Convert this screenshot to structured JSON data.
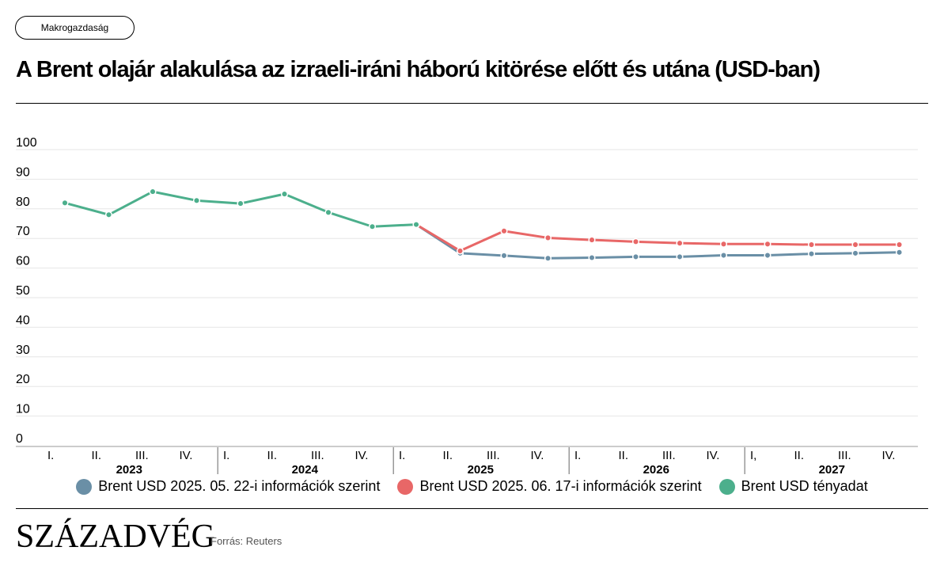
{
  "tag_label": "Makrogazdaság",
  "title": "A Brent olajár alakulása az izraeli-iráni háború kitörése előtt és utána (USD-ban)",
  "logo": "SZÁZADVÉG",
  "source": "Forrás: Reuters",
  "colors": {
    "forecast_may": "#6a8fa6",
    "forecast_june": "#e86767",
    "actual": "#4caf8c",
    "grid": "#e6e6e6"
  },
  "chart_data": {
    "type": "line",
    "y_ticks": [
      "0",
      "10",
      "20",
      "30",
      "40",
      "50",
      "60",
      "70",
      "80",
      "90",
      "100"
    ],
    "ylim": [
      0,
      102
    ],
    "grid": true,
    "legend_position": "bottom",
    "categories": [
      "I.",
      "II.",
      "III.",
      "IV.",
      "I.",
      "II.",
      "III.",
      "IV.",
      "I.",
      "II.",
      "III.",
      "IV.",
      "I.",
      "II.",
      "III.",
      "IV.",
      "I,",
      "II.",
      "III.",
      "IV."
    ],
    "years": [
      "2023",
      "2024",
      "2025",
      "2026",
      "2027"
    ],
    "series": [
      {
        "name": "Brent USD 2025. 05. 22-i információk szerint",
        "color_key": "forecast_may",
        "values": [
          null,
          null,
          null,
          null,
          null,
          null,
          null,
          null,
          74.7,
          65.0,
          64.2,
          63.3,
          63.5,
          63.8,
          63.8,
          64.3,
          64.3,
          64.8,
          65.0,
          65.3
        ]
      },
      {
        "name": "Brent USD 2025. 06. 17-i információk szerint",
        "color_key": "forecast_june",
        "values": [
          null,
          null,
          null,
          null,
          null,
          null,
          null,
          null,
          74.7,
          65.8,
          72.5,
          70.2,
          69.5,
          68.9,
          68.4,
          68.1,
          68.1,
          67.9,
          67.9,
          67.9
        ]
      },
      {
        "name": "Brent USD tényadat",
        "color_key": "actual",
        "values": [
          82.0,
          78.0,
          85.8,
          82.8,
          81.8,
          85.0,
          78.8,
          74.0,
          74.7,
          null,
          null,
          null,
          null,
          null,
          null,
          null,
          null,
          null,
          null,
          null
        ]
      }
    ]
  }
}
